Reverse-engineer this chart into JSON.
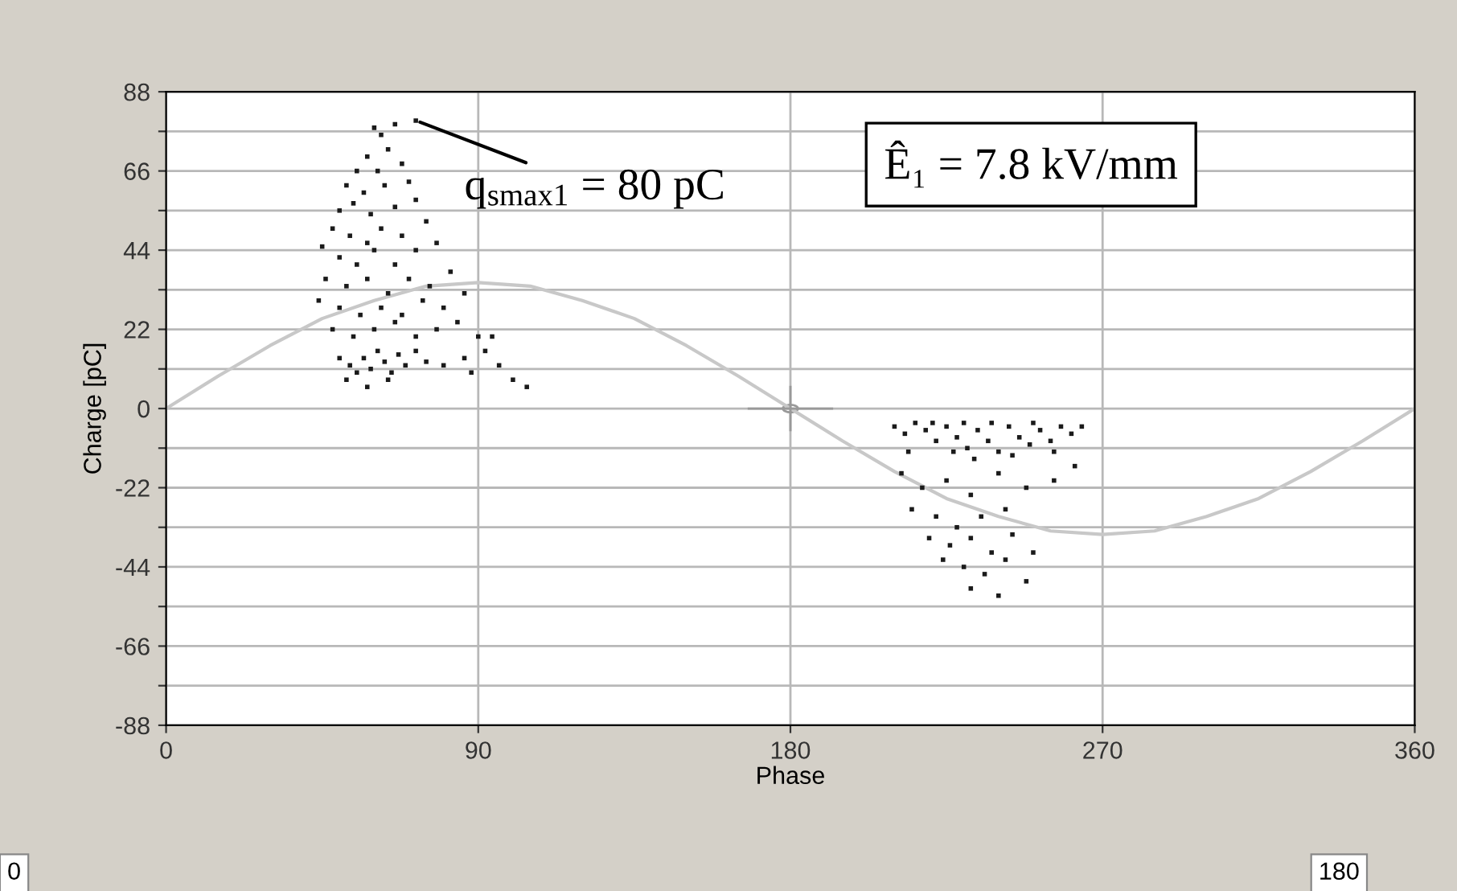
{
  "chart_data": {
    "type": "scatter",
    "xlabel": "Phase",
    "ylabel": "Charge [pC]",
    "xlim": [
      0,
      360
    ],
    "xticks": [
      0,
      90,
      180,
      270,
      360
    ],
    "ylim": [
      -88,
      88
    ],
    "yticks": [
      {
        "value": -88,
        "label": "-88"
      },
      {
        "value": -77,
        "label": null
      },
      {
        "value": -66,
        "label": "-66"
      },
      {
        "value": -55,
        "label": null
      },
      {
        "value": -44,
        "label": "-44"
      },
      {
        "value": -33,
        "label": null
      },
      {
        "value": -22,
        "label": "-22"
      },
      {
        "value": -11,
        "label": null
      },
      {
        "value": 0,
        "label": "0"
      },
      {
        "value": 11,
        "label": null
      },
      {
        "value": 22,
        "label": "22"
      },
      {
        "value": 33,
        "label": null
      },
      {
        "value": 44,
        "label": "44"
      },
      {
        "value": 55,
        "label": null
      },
      {
        "value": 66,
        "label": "66"
      },
      {
        "value": 77,
        "label": null
      },
      {
        "value": 88,
        "label": "88"
      }
    ],
    "grid": true,
    "legend": false,
    "annotations": [
      {
        "text": "q$_{smax1}$ = 80 pC",
        "x": 72,
        "y": 80
      },
      "Ê₁ = 7.8 kV/mm",
      "0",
      "180"
    ],
    "series": [
      {
        "type": "line",
        "color": "#c8c8c8",
        "line_style": "solid",
        "x": [
          0,
          15,
          30,
          45,
          60,
          75,
          90,
          105,
          120,
          135,
          150,
          165,
          180,
          195,
          210,
          225,
          240,
          255,
          270,
          285,
          300,
          315,
          330,
          345,
          360
        ],
        "values": [
          0,
          9,
          17.5,
          25,
          30,
          34,
          35,
          34,
          30,
          25,
          17.5,
          9,
          0,
          -9,
          -17.5,
          -25,
          -30,
          -34,
          -35,
          -34,
          -30,
          -25,
          -17.5,
          -9,
          0
        ]
      },
      {
        "color": "#1a1a1a",
        "marker": "square",
        "x": [
          72,
          60,
          62,
          66,
          58,
          64,
          55,
          61,
          68,
          52,
          57,
          63,
          70,
          50,
          54,
          59,
          66,
          72,
          48,
          53,
          58,
          62,
          68,
          75,
          45,
          50,
          55,
          60,
          66,
          72,
          78,
          46,
          52,
          58,
          64,
          70,
          76,
          82,
          44,
          50,
          56,
          62,
          68,
          74,
          80,
          86,
          48,
          54,
          60,
          66,
          72,
          78,
          84,
          90,
          50,
          53,
          55,
          57,
          59,
          61,
          63,
          65,
          67,
          69,
          72,
          75,
          80,
          86,
          92,
          96,
          100,
          104,
          52,
          58,
          64,
          88,
          94,
          210,
          213,
          216,
          219,
          222,
          225,
          228,
          231,
          234,
          237,
          240,
          243,
          246,
          249,
          252,
          255,
          258,
          261,
          264,
          227,
          233,
          238,
          244,
          250,
          256,
          221,
          230,
          212,
          218,
          225,
          232,
          240,
          248,
          256,
          215,
          222,
          228,
          235,
          242,
          220,
          226,
          232,
          238,
          244,
          224,
          230,
          236,
          242,
          232,
          240,
          248,
          250,
          214,
          262
        ],
        "values": [
          80,
          78,
          76,
          79,
          70,
          72,
          66,
          66,
          68,
          62,
          60,
          62,
          63,
          55,
          57,
          54,
          56,
          58,
          50,
          48,
          46,
          50,
          48,
          52,
          45,
          42,
          40,
          44,
          40,
          44,
          46,
          36,
          34,
          36,
          32,
          36,
          34,
          38,
          30,
          28,
          26,
          28,
          26,
          30,
          28,
          32,
          22,
          20,
          22,
          24,
          20,
          22,
          24,
          20,
          14,
          12,
          10,
          14,
          11,
          16,
          13,
          10,
          15,
          12,
          16,
          13,
          12,
          14,
          16,
          12,
          8,
          6,
          8,
          6,
          8,
          10,
          20,
          -5,
          -7,
          -4,
          -6,
          -9,
          -5,
          -8,
          -11,
          -6,
          -9,
          -12,
          -5,
          -8,
          -10,
          -6,
          -9,
          -5,
          -7,
          -5,
          -12,
          -14,
          -4,
          -13,
          -4,
          -12,
          -4,
          -4,
          -18,
          -22,
          -20,
          -24,
          -18,
          -22,
          -20,
          -28,
          -30,
          -33,
          -30,
          -28,
          -36,
          -38,
          -36,
          -40,
          -35,
          -42,
          -44,
          -46,
          -42,
          -50,
          -52,
          -48,
          -40,
          -12,
          -16
        ]
      }
    ]
  }
}
